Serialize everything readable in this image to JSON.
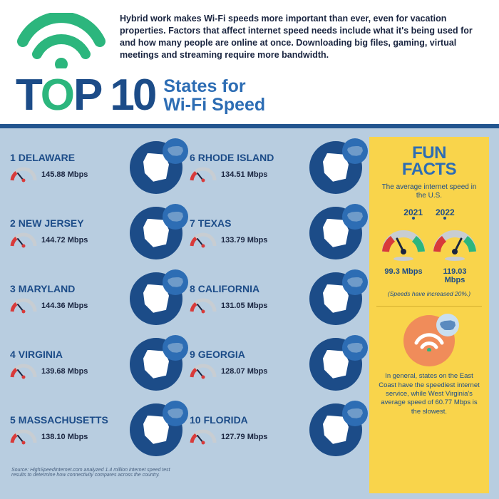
{
  "colors": {
    "primary_blue": "#1c4c88",
    "accent_blue": "#2d6db4",
    "green": "#2cb67d",
    "body_bg": "#b8cde0",
    "yellow": "#f9d44b",
    "orange": "#f08c5a",
    "red": "#d83a3a",
    "gauge_grey": "#c8cdd2"
  },
  "header": {
    "intro": "Hybrid work makes Wi-Fi speeds more important than ever, even for vacation properties. Factors that affect internet speed needs include what it's being used for and how many people are online at once. Downloading big files, gaming, virtual meetings and streaming require more bandwidth.",
    "title_top": "TOP",
    "title_num": "10",
    "subtitle_line1": "States for",
    "subtitle_line2": "Wi-Fi Speed"
  },
  "states": [
    {
      "rank": 1,
      "name": "DELAWARE",
      "speed": "145.88 Mbps"
    },
    {
      "rank": 2,
      "name": "NEW JERSEY",
      "speed": "144.72 Mbps"
    },
    {
      "rank": 3,
      "name": "MARYLAND",
      "speed": "144.36 Mbps"
    },
    {
      "rank": 4,
      "name": "VIRGINIA",
      "speed": "139.68 Mbps"
    },
    {
      "rank": 5,
      "name": "MASSACHUSETTS",
      "speed": "138.10 Mbps"
    },
    {
      "rank": 6,
      "name": "RHODE ISLAND",
      "speed": "134.51 Mbps"
    },
    {
      "rank": 7,
      "name": "TEXAS",
      "speed": "133.79 Mbps"
    },
    {
      "rank": 8,
      "name": "CALIFORNIA",
      "speed": "131.05 Mbps"
    },
    {
      "rank": 9,
      "name": "GEORGIA",
      "speed": "128.07 Mbps"
    },
    {
      "rank": 10,
      "name": "FLORIDA",
      "speed": "127.79 Mbps"
    }
  ],
  "source": "Source: HighSpeedInternet.com analyzed 1.4 million internet speed test results to determine how connectivity compares across the country.",
  "funfacts": {
    "title": "FUN FACTS",
    "subtitle": "The average internet speed in the U.S.",
    "year1": "2021",
    "year2": "2022",
    "val1": "99.3 Mbps",
    "val2": "119.03 Mbps",
    "note": "(Speeds have increased 20%.)",
    "bottom": "In general, states on the East Coast have the speediest internet service, while West Virginia's average speed of 60.77 Mbps is the slowest."
  }
}
